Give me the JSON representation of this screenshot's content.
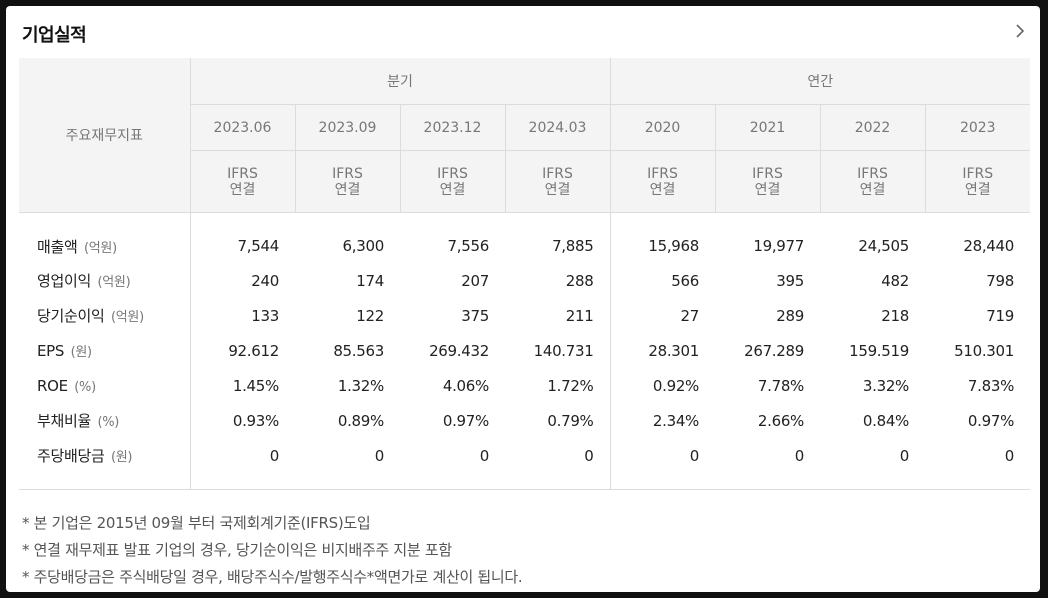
{
  "header": {
    "title": "기업실적",
    "more_icon": "chevron-right-icon"
  },
  "table": {
    "corner_label": "주요재무지표",
    "groups": {
      "quarterly": "분기",
      "annual": "연간"
    },
    "periods": [
      "2023.06",
      "2023.09",
      "2023.12",
      "2024.03",
      "2020",
      "2021",
      "2022",
      "2023"
    ],
    "standard_line1": "IFRS",
    "standard_line2": "연결",
    "rows": [
      {
        "label": "매출액",
        "unit": "(억원)",
        "values": [
          "7,544",
          "6,300",
          "7,556",
          "7,885",
          "15,968",
          "19,977",
          "24,505",
          "28,440"
        ]
      },
      {
        "label": "영업이익",
        "unit": "(억원)",
        "values": [
          "240",
          "174",
          "207",
          "288",
          "566",
          "395",
          "482",
          "798"
        ]
      },
      {
        "label": "당기순이익",
        "unit": "(억원)",
        "values": [
          "133",
          "122",
          "375",
          "211",
          "27",
          "289",
          "218",
          "719"
        ]
      },
      {
        "label": "EPS",
        "unit": "(원)",
        "values": [
          "92.612",
          "85.563",
          "269.432",
          "140.731",
          "28.301",
          "267.289",
          "159.519",
          "510.301"
        ]
      },
      {
        "label": "ROE",
        "unit": "(%)",
        "values": [
          "1.45%",
          "1.32%",
          "4.06%",
          "1.72%",
          "0.92%",
          "7.78%",
          "3.32%",
          "7.83%"
        ]
      },
      {
        "label": "부채비율",
        "unit": "(%)",
        "values": [
          "0.93%",
          "0.89%",
          "0.97%",
          "0.79%",
          "2.34%",
          "2.66%",
          "0.84%",
          "0.97%"
        ]
      },
      {
        "label": "주당배당금",
        "unit": "(원)",
        "values": [
          "0",
          "0",
          "0",
          "0",
          "0",
          "0",
          "0",
          "0"
        ]
      }
    ]
  },
  "notes": [
    "* 본 기업은 2015년 09월 부터 국제회계기준(IFRS)도입",
    "* 연결 재무제표 발표 기업의 경우, 당기순이익은 비지배주주 지분 포함",
    "* 주당배당금은 주식배당일 경우, 배당주식수/발행주식수*액면가로 계산이 됩니다."
  ]
}
